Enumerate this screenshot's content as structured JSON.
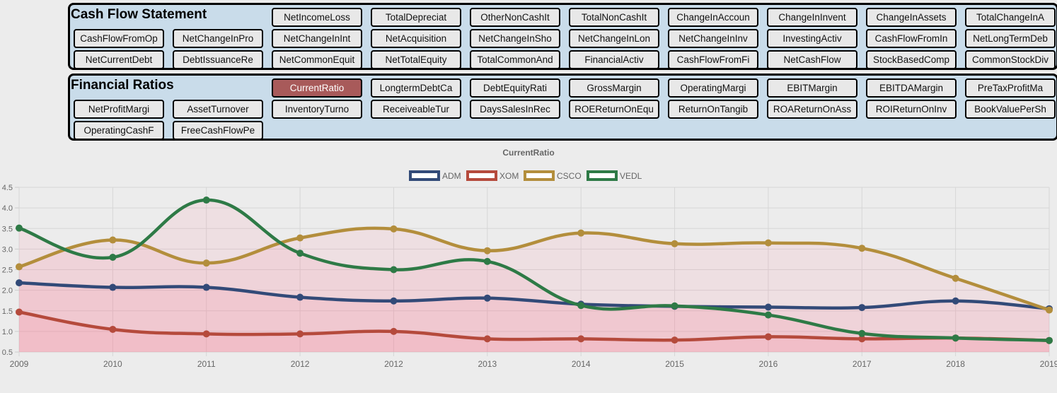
{
  "cash_flow": {
    "title": "Cash Flow Statement",
    "buttons": [
      "NetIncomeLoss",
      "TotalDepreciat",
      "OtherNonCashIt",
      "TotalNonCashIt",
      "ChangeInAccoun",
      "ChangeInInvent",
      "ChangeInAssets",
      "TotalChangeInA",
      "CashFlowFromOp",
      "NetChangeInPro",
      "NetChangeInInt",
      "NetAcquisition",
      "NetChangeInSho",
      "NetChangeInLon",
      "NetChangeInInv",
      "InvestingActiv",
      "CashFlowFromIn",
      "NetLongTermDeb",
      "NetCurrentDebt",
      "DebtIssuanceRe",
      "NetCommonEquit",
      "NetTotalEquity",
      "TotalCommonAnd",
      "FinancialActiv",
      "CashFlowFromFi",
      "NetCashFlow",
      "StockBasedComp",
      "CommonStockDiv"
    ]
  },
  "financial_ratios": {
    "title": "Financial Ratios",
    "active": "CurrentRatio",
    "buttons": [
      "CurrentRatio",
      "LongtermDebtCa",
      "DebtEquityRati",
      "GrossMargin",
      "OperatingMargi",
      "EBITMargin",
      "EBITDAMargin",
      "PreTaxProfitMa",
      "NetProfitMargi",
      "AssetTurnover",
      "InventoryTurno",
      "ReceiveableTur",
      "DaysSalesInRec",
      "ROEReturnOnEqu",
      "ReturnOnTangib",
      "ROAReturnOnAss",
      "ROIReturnOnInv",
      "BookValuePerSh",
      "OperatingCashF",
      "FreeCashFlowPe"
    ]
  },
  "chart_data": {
    "type": "line",
    "title": "CurrentRatio",
    "x": [
      "2009",
      "2010",
      "2011",
      "2012",
      "2012",
      "2013",
      "2014",
      "2015",
      "2016",
      "2017",
      "2018",
      "2019"
    ],
    "ylim": [
      0.5,
      4.5
    ],
    "yticks": [
      "0.5",
      "1.0",
      "1.5",
      "2.0",
      "2.5",
      "3.0",
      "3.5",
      "4.0",
      "4.5"
    ],
    "grid": true,
    "legend_position": "top",
    "series": [
      {
        "name": "ADM",
        "color": "#324a78",
        "values": [
          2.18,
          2.07,
          2.07,
          1.83,
          1.74,
          1.81,
          1.66,
          1.61,
          1.59,
          1.58,
          1.74,
          1.55
        ]
      },
      {
        "name": "XOM",
        "color": "#b54a3c",
        "values": [
          1.47,
          1.05,
          0.94,
          0.94,
          1.0,
          0.82,
          0.82,
          0.79,
          0.87,
          0.82,
          0.84,
          0.78
        ]
      },
      {
        "name": "CSCO",
        "color": "#b38e3c",
        "values": [
          2.57,
          3.22,
          2.66,
          3.27,
          3.49,
          2.96,
          3.39,
          3.13,
          3.15,
          3.02,
          2.29,
          1.52
        ]
      },
      {
        "name": "VEDL",
        "color": "#2e7a46",
        "values": [
          3.51,
          2.8,
          4.19,
          2.9,
          2.5,
          2.7,
          1.63,
          1.62,
          1.4,
          0.95,
          0.84,
          0.78
        ]
      }
    ]
  }
}
